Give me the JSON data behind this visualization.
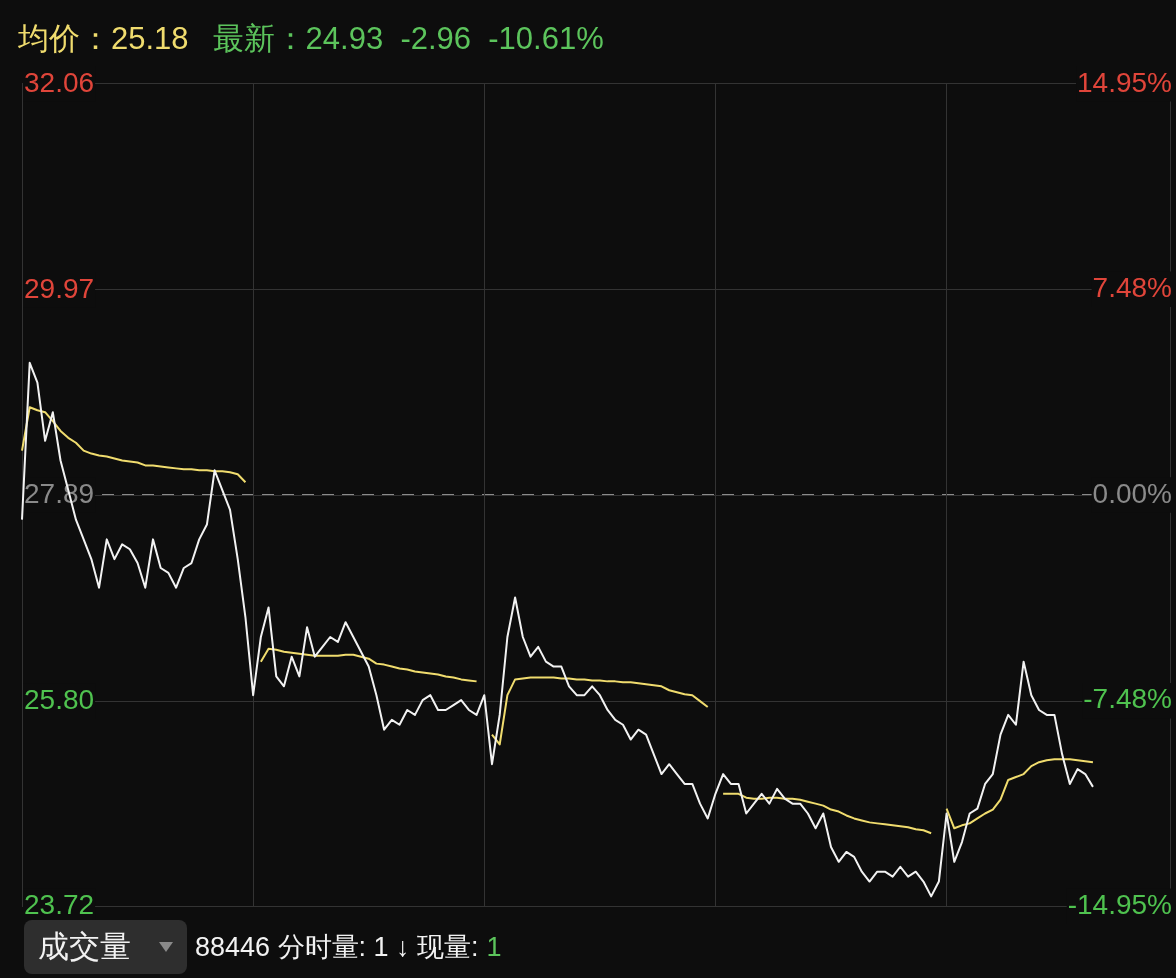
{
  "chart_data": {
    "type": "line",
    "title": "均价：25.18",
    "subtitle": "最新：24.93  -2.96  -10.61%",
    "annotations": [
      "成交量",
      "88446 分时量: 1 ↓ 现量:",
      "1"
    ],
    "categories": [
      null,
      null,
      null,
      null,
      null,
      null,
      null,
      null,
      null,
      null,
      null,
      null,
      null,
      null,
      null,
      null,
      null,
      null,
      null,
      null,
      null,
      null,
      null,
      null,
      null,
      null,
      null,
      null,
      null,
      null,
      null,
      null,
      null,
      null,
      null,
      null,
      null,
      null,
      null,
      null,
      null,
      null,
      null,
      null,
      null,
      null,
      null,
      null,
      null,
      null,
      null,
      null,
      null,
      null,
      null,
      null,
      null,
      null,
      null,
      null,
      null,
      null,
      null,
      null,
      null,
      null,
      null,
      null,
      null,
      null,
      null,
      null,
      null,
      null,
      null,
      null,
      null,
      null,
      null,
      null,
      null,
      null,
      null,
      null,
      null,
      null,
      null,
      null,
      null,
      null,
      null,
      null,
      null,
      null,
      null,
      null,
      null,
      null,
      null,
      null,
      null,
      null,
      null,
      null,
      null,
      null,
      null,
      null,
      null,
      null,
      null,
      null,
      null,
      null,
      null,
      null,
      null,
      null,
      null,
      null,
      null,
      null,
      null,
      null,
      null,
      null,
      null,
      null,
      null,
      null,
      null,
      null,
      null,
      null,
      null,
      null,
      null,
      null,
      null,
      null,
      null,
      null,
      null,
      null,
      null,
      null,
      null,
      null,
      null,
      null
    ],
    "series": [
      {
        "color": "#f2f2f2",
        "values": [
          27.64,
          29.23,
          29.03,
          28.44,
          28.73,
          28.24,
          27.94,
          27.64,
          27.44,
          27.24,
          26.95,
          27.44,
          27.24,
          27.39,
          27.34,
          27.2,
          26.95,
          27.44,
          27.15,
          27.1,
          26.95,
          27.15,
          27.2,
          27.44,
          27.59,
          28.14,
          27.94,
          27.74,
          27.24,
          26.65,
          25.86,
          26.45,
          26.75,
          26.05,
          25.95,
          26.25,
          26.05,
          26.55,
          26.25,
          26.35,
          26.45,
          26.4,
          26.6,
          26.45,
          26.3,
          26.15,
          25.86,
          25.51,
          25.61,
          25.56,
          25.71,
          25.66,
          25.81,
          25.86,
          25.71,
          25.71,
          25.76,
          25.81,
          25.71,
          25.66,
          25.86,
          25.16,
          25.66,
          26.45,
          26.85,
          26.45,
          26.25,
          26.35,
          26.2,
          26.15,
          26.15,
          25.95,
          25.86,
          25.86,
          25.95,
          25.86,
          25.71,
          25.61,
          25.56,
          25.41,
          25.51,
          25.46,
          25.26,
          25.06,
          25.16,
          25.06,
          24.96,
          24.96,
          24.76,
          24.61,
          24.86,
          25.06,
          24.96,
          24.96,
          24.66,
          24.76,
          24.86,
          24.76,
          24.91,
          24.81,
          24.76,
          24.76,
          24.66,
          24.51,
          24.66,
          24.32,
          24.17,
          24.27,
          24.22,
          24.07,
          23.97,
          24.07,
          24.07,
          24.02,
          24.12,
          24.02,
          24.07,
          23.97,
          23.82,
          23.97,
          24.66,
          24.17,
          24.37,
          24.66,
          24.71,
          24.96,
          25.06,
          25.46,
          25.66,
          25.56,
          26.2,
          25.86,
          25.71,
          25.66,
          25.66,
          25.26,
          24.96,
          25.11,
          25.06,
          24.93,
          null,
          null,
          null,
          null,
          null,
          null,
          null,
          null,
          null,
          null
        ]
      },
      {
        "color": "#f0dc6e",
        "values": [
          28.34,
          28.78,
          28.75,
          28.73,
          28.64,
          28.54,
          28.47,
          28.42,
          28.34,
          28.31,
          28.29,
          28.28,
          28.26,
          28.24,
          28.23,
          28.22,
          28.19,
          28.19,
          28.18,
          28.17,
          28.16,
          28.15,
          28.15,
          28.14,
          28.14,
          28.13,
          28.13,
          28.12,
          28.1,
          28.02,
          null,
          26.2,
          26.33,
          26.32,
          26.3,
          26.29,
          26.28,
          26.27,
          26.26,
          26.26,
          26.26,
          26.26,
          26.27,
          26.27,
          26.25,
          26.23,
          26.18,
          26.17,
          26.15,
          26.13,
          26.12,
          26.1,
          26.09,
          26.08,
          26.07,
          26.05,
          26.04,
          26.02,
          26.01,
          26.0,
          null,
          25.46,
          25.36,
          25.86,
          26.02,
          26.03,
          26.04,
          26.04,
          26.04,
          26.04,
          26.03,
          26.03,
          26.02,
          26.02,
          26.01,
          26.01,
          26.0,
          26.0,
          25.99,
          25.99,
          25.98,
          25.97,
          25.96,
          25.95,
          25.91,
          25.89,
          25.87,
          25.86,
          25.8,
          25.74,
          null,
          24.86,
          24.86,
          24.86,
          24.82,
          24.81,
          24.81,
          24.82,
          24.82,
          24.81,
          24.81,
          24.8,
          24.78,
          24.76,
          24.74,
          24.7,
          24.68,
          24.64,
          24.61,
          24.59,
          24.57,
          24.56,
          24.55,
          24.54,
          24.53,
          24.52,
          24.5,
          24.49,
          24.46,
          null,
          24.71,
          24.51,
          24.54,
          24.56,
          24.61,
          24.66,
          24.7,
          24.8,
          25.0,
          25.03,
          25.06,
          25.14,
          25.18,
          25.2,
          25.21,
          25.21,
          25.21,
          25.2,
          25.19,
          25.18,
          null,
          null,
          null,
          null,
          null,
          null,
          null,
          null,
          null,
          null
        ]
      }
    ],
    "ylim": [
      23.72,
      32.06
    ],
    "yticks": [
      32.06,
      29.97,
      27.89,
      {
        "value": 25.8,
        "label": "25.80"
      },
      23.72
    ],
    "y2lim": [
      -14.95,
      14.95
    ],
    "y2ticks": [
      {
        "value": 14.95,
        "label": "14.95%"
      },
      {
        "value": 7.48,
        "label": "7.48%"
      },
      {
        "value": 0,
        "label": "0.00%"
      },
      {
        "value": -7.48,
        "label": "-7.48%"
      },
      {
        "value": -14.95,
        "label": "-14.95%"
      }
    ],
    "ref_lines": [
      {
        "axis": "y",
        "value": 27.89,
        "color": "#8a8a8a",
        "line_style": "dashed"
      }
    ],
    "grid": true
  }
}
